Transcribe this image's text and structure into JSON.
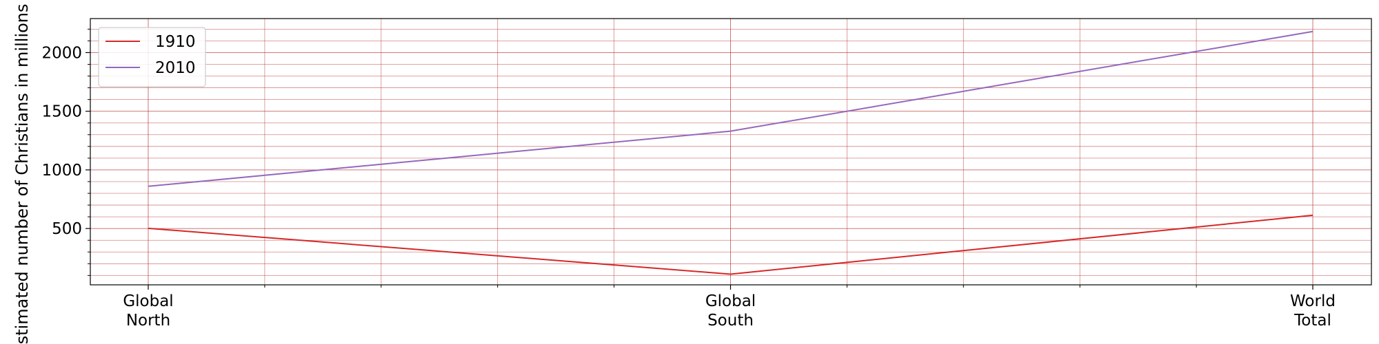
{
  "chart_data": {
    "type": "line",
    "title": "",
    "xlabel": "",
    "ylabel": "Estimated number of Christians in millions",
    "categories": [
      [
        "Global",
        "North"
      ],
      [
        "Global",
        "South"
      ],
      [
        "World",
        "Total"
      ]
    ],
    "series": [
      {
        "name": "1910",
        "values": [
          502,
          111,
          613
        ],
        "color": "#d62728"
      },
      {
        "name": "2010",
        "values": [
          860,
          1330,
          2180
        ],
        "color": "#9467bd"
      }
    ],
    "ylim": [
      20,
      2290
    ],
    "yticks": [
      500,
      1000,
      1500,
      2000
    ],
    "grid": true,
    "grid_color": "#b22222",
    "legend_position": "top-left"
  }
}
